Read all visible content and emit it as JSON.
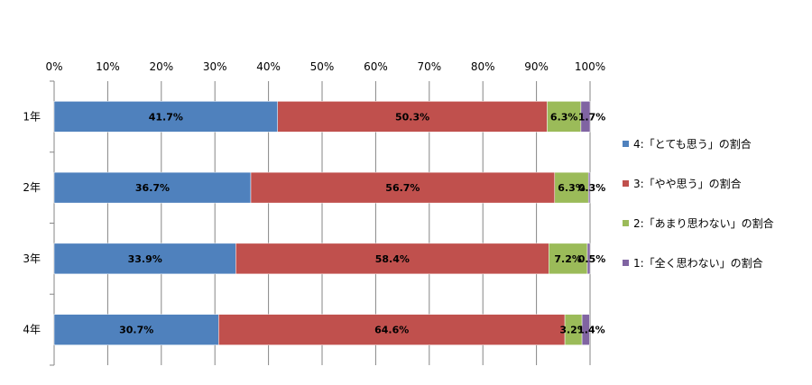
{
  "chart_data": {
    "type": "bar",
    "orientation": "horizontal",
    "stacked": "percent",
    "categories": [
      "1年",
      "2年",
      "3年",
      "4年"
    ],
    "series": [
      {
        "name": "4:「とても思う」の割合",
        "color": "#4f81bd",
        "values": [
          41.7,
          36.7,
          33.9,
          30.7
        ],
        "labels": [
          "41.7%",
          "36.7%",
          "33.9%",
          "30.7%"
        ]
      },
      {
        "name": "3:「やや思う」の割合",
        "color": "#c0504d",
        "values": [
          50.3,
          56.7,
          58.4,
          64.6
        ],
        "labels": [
          "50.3%",
          "56.7%",
          "58.4%",
          "64.6%"
        ]
      },
      {
        "name": "2:「あまり思わない」の割合",
        "color": "#9bbb59",
        "values": [
          6.3,
          6.3,
          7.2,
          3.2
        ],
        "labels": [
          "6.3%",
          "6.3%",
          "7.2%",
          "3.2%"
        ]
      },
      {
        "name": "1:「全く思わない」の割合",
        "color": "#8064a2",
        "values": [
          1.7,
          0.3,
          0.5,
          1.4
        ],
        "labels": [
          "1.7%",
          "0.3%",
          "0.5%",
          "1.4%"
        ]
      }
    ],
    "x_ticks": [
      "0%",
      "10%",
      "20%",
      "30%",
      "40%",
      "50%",
      "60%",
      "70%",
      "80%",
      "90%",
      "100%"
    ],
    "xlim": [
      0,
      100
    ],
    "grid": true,
    "legend": "right"
  }
}
